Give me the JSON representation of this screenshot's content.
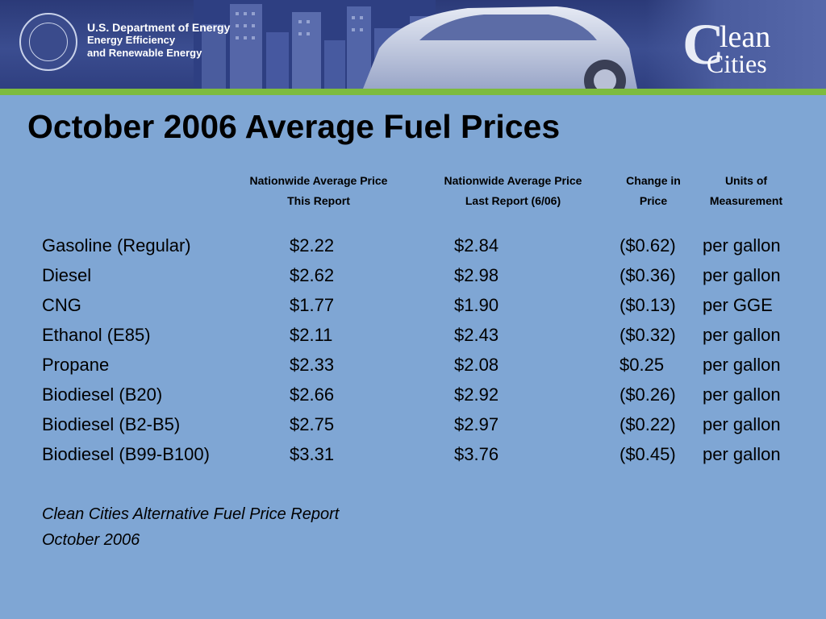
{
  "header": {
    "agency_line1": "U.S. Department of Energy",
    "agency_line2": "Energy Efficiency",
    "agency_line3": "and Renewable Energy",
    "program_logo_c": "C",
    "program_logo_lean": "lean",
    "program_logo_cities": "Cities",
    "colors": {
      "banner": "#2b3a78",
      "stripe": "#7dbb3e",
      "background": "#7fa6d4"
    }
  },
  "title": "October 2006 Average Fuel Prices",
  "columns": [
    {
      "line1": "Nationwide Average Price",
      "line2": "This Report"
    },
    {
      "line1": "Nationwide Average Price",
      "line2": "Last Report (6/06)"
    },
    {
      "line1": "Change in",
      "line2": "Price"
    },
    {
      "line1": "Units of",
      "line2": "Measurement"
    }
  ],
  "rows": [
    {
      "fuel": "Gasoline (Regular)",
      "this": "$2.22",
      "last": "$2.84",
      "change": "($0.62)",
      "unit": "per gallon"
    },
    {
      "fuel": "Diesel",
      "this": "$2.62",
      "last": "$2.98",
      "change": "($0.36)",
      "unit": "per gallon"
    },
    {
      "fuel": "CNG",
      "this": "$1.77",
      "last": "$1.90",
      "change": "($0.13)",
      "unit": "per GGE"
    },
    {
      "fuel": "Ethanol (E85)",
      "this": "$2.11",
      "last": "$2.43",
      "change": "($0.32)",
      "unit": "per gallon"
    },
    {
      "fuel": "Propane",
      "this": "$2.33",
      "last": "$2.08",
      "change": "$0.25",
      "unit": "per gallon"
    },
    {
      "fuel": "Biodiesel (B20)",
      "this": "$2.66",
      "last": "$2.92",
      "change": "($0.26)",
      "unit": "per gallon"
    },
    {
      "fuel": "Biodiesel (B2-B5)",
      "this": "$2.75",
      "last": "$2.97",
      "change": "($0.22)",
      "unit": "per gallon"
    },
    {
      "fuel": "Biodiesel (B99-B100)",
      "this": "$3.31",
      "last": "$3.76",
      "change": "($0.45)",
      "unit": "per gallon"
    }
  ],
  "source": {
    "line1": "Clean Cities Alternative Fuel Price Report",
    "line2": "October 2006"
  }
}
